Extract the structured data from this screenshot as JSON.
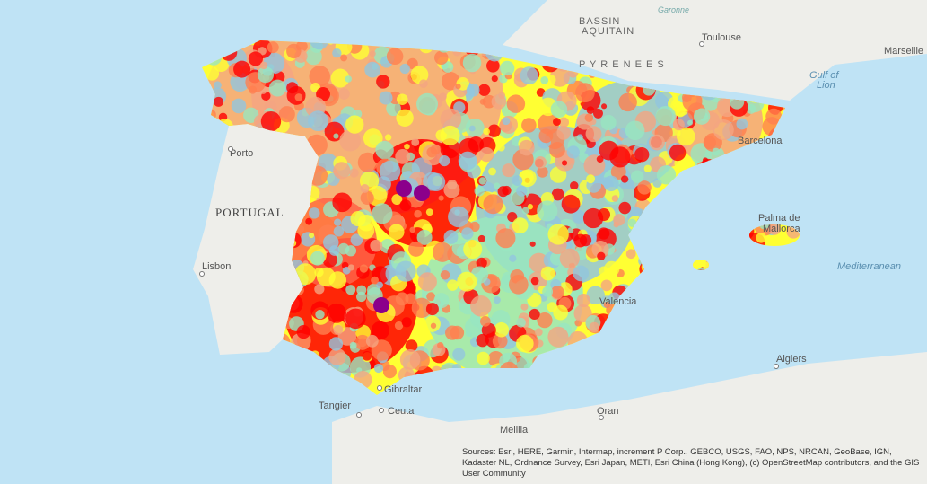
{
  "map": {
    "labels": [
      "BASSIN",
      "AQUITAIN",
      "Garonne",
      "Toulouse",
      "Marseille",
      "Gulf of",
      "Lion",
      "P Y R E N E E S",
      "Porto",
      "PORTUGAL",
      "Lisbon",
      "Barcelona",
      "Palma de",
      "Mallorca",
      "Mediterranean",
      "Algiers",
      "Oran",
      "Melilla",
      "Tangier",
      "Ceuta",
      "Gibraltar",
      "Valencia"
    ],
    "attribution": "Sources: Esri, HERE, Garmin, Intermap, increment P Corp., GEBCO, USGS, FAO, NPS, NRCAN, GeoBase, IGN, Kadaster NL, Ordnance Survey, Esri Japan, METI, Esri China (Hong Kong), (c) OpenStreetMap contributors, and the GIS User Community"
  }
}
